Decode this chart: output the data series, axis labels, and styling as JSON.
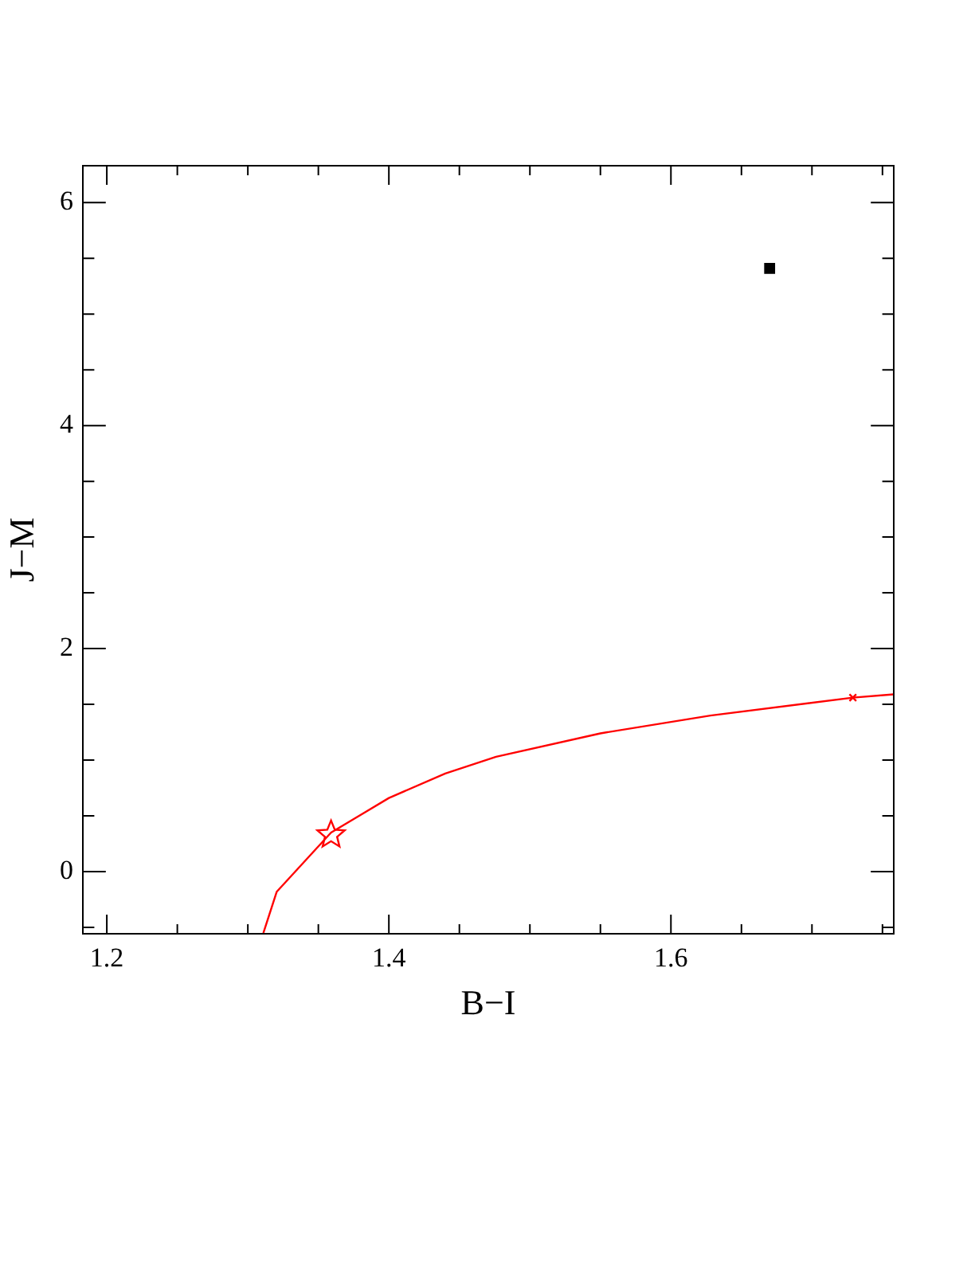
{
  "chart_data": {
    "type": "line",
    "xlabel": "B−I",
    "ylabel": "J−M",
    "xlim": [
      1.183,
      1.758
    ],
    "ylim": [
      -0.557,
      6.33
    ],
    "xticks": [
      1.2,
      {
        "value": 1.25,
        "label": null
      },
      {
        "value": 1.3,
        "label": null
      },
      {
        "value": 1.35,
        "label": null
      },
      1.4,
      {
        "value": 1.45,
        "label": null
      },
      {
        "value": 1.5,
        "label": null
      },
      {
        "value": 1.55,
        "label": null
      },
      1.6,
      {
        "value": 1.65,
        "label": null
      },
      {
        "value": 1.7,
        "label": null
      },
      {
        "value": 1.75,
        "label": null
      }
    ],
    "yticks": [
      {
        "value": -0.5,
        "label": null
      },
      0,
      {
        "value": 0.5,
        "label": null
      },
      {
        "value": 1,
        "label": null
      },
      {
        "value": 1.5,
        "label": null
      },
      2,
      {
        "value": 2.5,
        "label": null
      },
      {
        "value": 3,
        "label": null
      },
      {
        "value": 3.5,
        "label": null
      },
      4,
      {
        "value": 4.5,
        "label": null
      },
      {
        "value": 5,
        "label": null
      },
      {
        "value": 5.5,
        "label": null
      },
      6
    ],
    "series": [
      {
        "color": "#ff0000",
        "marker": "none",
        "x": [
          1.311,
          1.3205,
          1.359,
          1.4,
          1.44,
          1.476,
          1.55,
          1.628,
          1.729,
          1.758
        ],
        "values": [
          -0.55,
          -0.18,
          0.35,
          0.66,
          0.88,
          1.03,
          1.24,
          1.4,
          1.56,
          1.59
        ]
      },
      {
        "type": "scatter",
        "color": "#ff0000",
        "marker": "star",
        "x": [
          1.359
        ],
        "values": [
          0.33
        ]
      },
      {
        "type": "scatter",
        "color": "#ff0000",
        "marker": "cross",
        "x": [
          1.729
        ],
        "values": [
          1.56
        ]
      },
      {
        "type": "scatter",
        "color": "#000000",
        "marker": "square",
        "x": [
          1.67
        ],
        "values": [
          5.41
        ]
      }
    ]
  }
}
